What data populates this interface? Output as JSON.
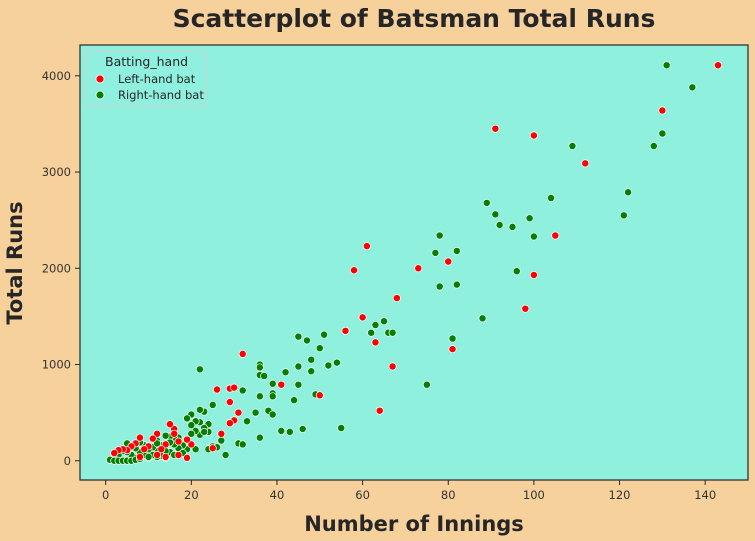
{
  "chart_data": {
    "type": "scatter",
    "title": "Scatterplot  of Batsman Total Runs",
    "xlabel": "Number of Innings",
    "ylabel": "Total Runs",
    "xlim": [
      -6,
      150
    ],
    "ylim": [
      -200,
      4320
    ],
    "xticks": [
      0,
      20,
      40,
      60,
      80,
      100,
      120,
      140
    ],
    "yticks": [
      0,
      1000,
      2000,
      3000,
      4000
    ],
    "grid": false,
    "legend": {
      "title": "Batting_hand",
      "placement": "top-left",
      "entries": [
        "Left-hand bat",
        "Right-hand bat"
      ]
    },
    "colors": {
      "figure_background": "#f6d19c",
      "plot_background": "#90f0de",
      "Left-hand bat": "#ff0000",
      "Right-hand bat": "#008000"
    },
    "series": [
      {
        "name": "Left-hand bat",
        "points": [
          [
            143,
            4110
          ],
          [
            130,
            3640
          ],
          [
            91,
            3450
          ],
          [
            100,
            3380
          ],
          [
            112,
            3090
          ],
          [
            105,
            2340
          ],
          [
            61,
            2230
          ],
          [
            58,
            1980
          ],
          [
            73,
            2000
          ],
          [
            80,
            2070
          ],
          [
            100,
            1930
          ],
          [
            98,
            1580
          ],
          [
            68,
            1690
          ],
          [
            60,
            1490
          ],
          [
            56,
            1350
          ],
          [
            63,
            1230
          ],
          [
            81,
            1160
          ],
          [
            67,
            980
          ],
          [
            64,
            520
          ],
          [
            32,
            1110
          ],
          [
            41,
            790
          ],
          [
            50,
            680
          ],
          [
            26,
            740
          ],
          [
            29,
            750
          ],
          [
            30,
            760
          ],
          [
            29,
            610
          ],
          [
            31,
            500
          ],
          [
            30,
            420
          ],
          [
            29,
            390
          ],
          [
            27,
            280
          ],
          [
            25,
            130
          ],
          [
            20,
            170
          ],
          [
            19,
            220
          ],
          [
            17,
            200
          ],
          [
            16,
            330
          ],
          [
            16,
            280
          ],
          [
            15,
            380
          ],
          [
            14,
            170
          ],
          [
            13,
            120
          ],
          [
            12,
            280
          ],
          [
            11,
            230
          ],
          [
            10,
            150
          ],
          [
            9,
            120
          ],
          [
            8,
            240
          ],
          [
            7,
            180
          ],
          [
            6,
            150
          ],
          [
            5,
            110
          ],
          [
            4,
            120
          ],
          [
            3,
            110
          ],
          [
            2,
            80
          ],
          [
            17,
            60
          ],
          [
            19,
            30
          ],
          [
            14,
            40
          ],
          [
            12,
            60
          ],
          [
            8,
            40
          ]
        ]
      },
      {
        "name": "Right-hand bat",
        "points": [
          [
            131,
            4110
          ],
          [
            137,
            3880
          ],
          [
            130,
            3400
          ],
          [
            109,
            3270
          ],
          [
            128,
            3270
          ],
          [
            122,
            2790
          ],
          [
            104,
            2730
          ],
          [
            89,
            2680
          ],
          [
            91,
            2560
          ],
          [
            99,
            2520
          ],
          [
            121,
            2550
          ],
          [
            92,
            2450
          ],
          [
            95,
            2430
          ],
          [
            78,
            2340
          ],
          [
            100,
            2330
          ],
          [
            82,
            2180
          ],
          [
            77,
            2160
          ],
          [
            96,
            1970
          ],
          [
            82,
            1830
          ],
          [
            78,
            1810
          ],
          [
            88,
            1480
          ],
          [
            81,
            1270
          ],
          [
            75,
            790
          ],
          [
            65,
            1450
          ],
          [
            63,
            1410
          ],
          [
            66,
            1330
          ],
          [
            67,
            1330
          ],
          [
            62,
            1330
          ],
          [
            51,
            1310
          ],
          [
            45,
            1290
          ],
          [
            47,
            1250
          ],
          [
            50,
            1170
          ],
          [
            48,
            1050
          ],
          [
            54,
            1020
          ],
          [
            52,
            990
          ],
          [
            45,
            980
          ],
          [
            48,
            930
          ],
          [
            42,
            920
          ],
          [
            36,
            1000
          ],
          [
            36,
            970
          ],
          [
            22,
            950
          ],
          [
            36,
            890
          ],
          [
            37,
            880
          ],
          [
            39,
            800
          ],
          [
            45,
            790
          ],
          [
            39,
            700
          ],
          [
            39,
            670
          ],
          [
            36,
            670
          ],
          [
            49,
            690
          ],
          [
            44,
            630
          ],
          [
            32,
            730
          ],
          [
            35,
            500
          ],
          [
            38,
            520
          ],
          [
            39,
            480
          ],
          [
            55,
            340
          ],
          [
            46,
            330
          ],
          [
            43,
            300
          ],
          [
            41,
            310
          ],
          [
            36,
            240
          ],
          [
            33,
            410
          ],
          [
            31,
            180
          ],
          [
            32,
            170
          ],
          [
            25,
            580
          ],
          [
            27,
            210
          ],
          [
            28,
            60
          ],
          [
            25,
            150
          ],
          [
            24,
            380
          ],
          [
            24,
            300
          ],
          [
            24,
            120
          ],
          [
            23,
            510
          ],
          [
            22,
            530
          ],
          [
            23,
            340
          ],
          [
            22,
            400
          ],
          [
            22,
            270
          ],
          [
            21,
            410
          ],
          [
            21,
            310
          ],
          [
            20,
            480
          ],
          [
            20,
            370
          ],
          [
            20,
            280
          ],
          [
            19,
            440
          ],
          [
            19,
            120
          ],
          [
            18,
            160
          ],
          [
            17,
            240
          ],
          [
            17,
            130
          ],
          [
            16,
            230
          ],
          [
            16,
            170
          ],
          [
            15,
            250
          ],
          [
            15,
            190
          ],
          [
            15,
            90
          ],
          [
            14,
            260
          ],
          [
            14,
            100
          ],
          [
            13,
            160
          ],
          [
            13,
            50
          ],
          [
            12,
            210
          ],
          [
            12,
            100
          ],
          [
            12,
            40
          ],
          [
            11,
            140
          ],
          [
            11,
            60
          ],
          [
            10,
            120
          ],
          [
            10,
            30
          ],
          [
            9,
            160
          ],
          [
            9,
            60
          ],
          [
            8,
            190
          ],
          [
            8,
            90
          ],
          [
            7,
            130
          ],
          [
            7,
            30
          ],
          [
            6,
            160
          ],
          [
            6,
            60
          ],
          [
            5,
            180
          ],
          [
            5,
            90
          ],
          [
            4,
            100
          ],
          [
            4,
            10
          ],
          [
            3,
            60
          ],
          [
            2,
            20
          ],
          [
            1,
            10
          ],
          [
            2,
            0
          ],
          [
            3,
            0
          ],
          [
            4,
            0
          ],
          [
            5,
            0
          ],
          [
            6,
            0
          ],
          [
            7,
            10
          ],
          [
            8,
            20
          ],
          [
            10,
            40
          ],
          [
            14,
            30
          ],
          [
            16,
            60
          ],
          [
            18,
            80
          ],
          [
            21,
            120
          ],
          [
            23,
            300
          ],
          [
            26,
            140
          ],
          [
            12,
            180
          ]
        ]
      }
    ]
  }
}
